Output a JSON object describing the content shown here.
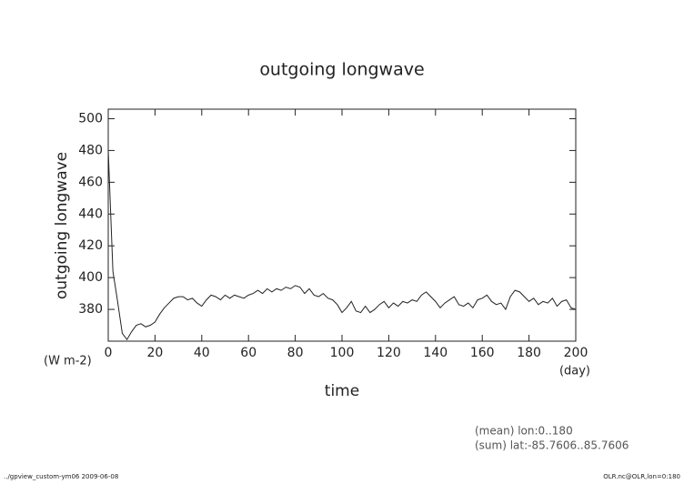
{
  "chart_data": {
    "type": "line",
    "title": "outgoing longwave",
    "x_label": "time",
    "y_label": "outgoing longwave",
    "x_unit": "(day)",
    "y_unit": "(W m-2)",
    "annotations": [
      "(mean) lon:0..180",
      "(sum) lat:-85.7606..85.7606"
    ],
    "footer_left": "../gpview_custom-ym06  2009-06-08",
    "footer_right": "OLR.nc@OLR,lon=0:180",
    "x": [
      0,
      2,
      4,
      6,
      8,
      10,
      12,
      14,
      16,
      18,
      20,
      22,
      24,
      26,
      28,
      30,
      32,
      34,
      36,
      38,
      40,
      42,
      44,
      46,
      48,
      50,
      52,
      54,
      56,
      58,
      60,
      62,
      64,
      66,
      68,
      70,
      72,
      74,
      76,
      78,
      80,
      82,
      84,
      86,
      88,
      90,
      92,
      94,
      96,
      98,
      100,
      102,
      104,
      106,
      108,
      110,
      112,
      114,
      116,
      118,
      120,
      122,
      124,
      126,
      128,
      130,
      132,
      134,
      136,
      138,
      140,
      142,
      144,
      146,
      148,
      150,
      152,
      154,
      156,
      158,
      160,
      162,
      164,
      166,
      168,
      170,
      172,
      174,
      176,
      178,
      180,
      182,
      184,
      186,
      188,
      190,
      192,
      194,
      196,
      198,
      200
    ],
    "series": [
      {
        "color": "#222222",
        "values": [
          480,
          404,
          385,
          365,
          361,
          366,
          370,
          371,
          369,
          370,
          372,
          377,
          381,
          384,
          387,
          388,
          388,
          386,
          387,
          384,
          382,
          386,
          389,
          388,
          386,
          389,
          387,
          389,
          388,
          387,
          389,
          390,
          392,
          390,
          393,
          391,
          393,
          392,
          394,
          393,
          395,
          394,
          390,
          393,
          389,
          388,
          390,
          387,
          386,
          383,
          378,
          381,
          385,
          379,
          378,
          382,
          378,
          380,
          383,
          385,
          381,
          384,
          382,
          385,
          384,
          386,
          385,
          389,
          391,
          388,
          385,
          381,
          384,
          386,
          388,
          383,
          382,
          384,
          381,
          386,
          387,
          389,
          385,
          383,
          384,
          380,
          388,
          392,
          391,
          388,
          385,
          387,
          383,
          385,
          384,
          387,
          382,
          385,
          386,
          381,
          380
        ]
      }
    ],
    "xlim": [
      0,
      200
    ],
    "xticks": [
      0,
      20,
      40,
      60,
      80,
      100,
      120,
      140,
      160,
      180,
      200
    ],
    "ylim": [
      360,
      506
    ],
    "yticks": [
      380,
      400,
      420,
      440,
      460,
      480,
      500
    ]
  }
}
